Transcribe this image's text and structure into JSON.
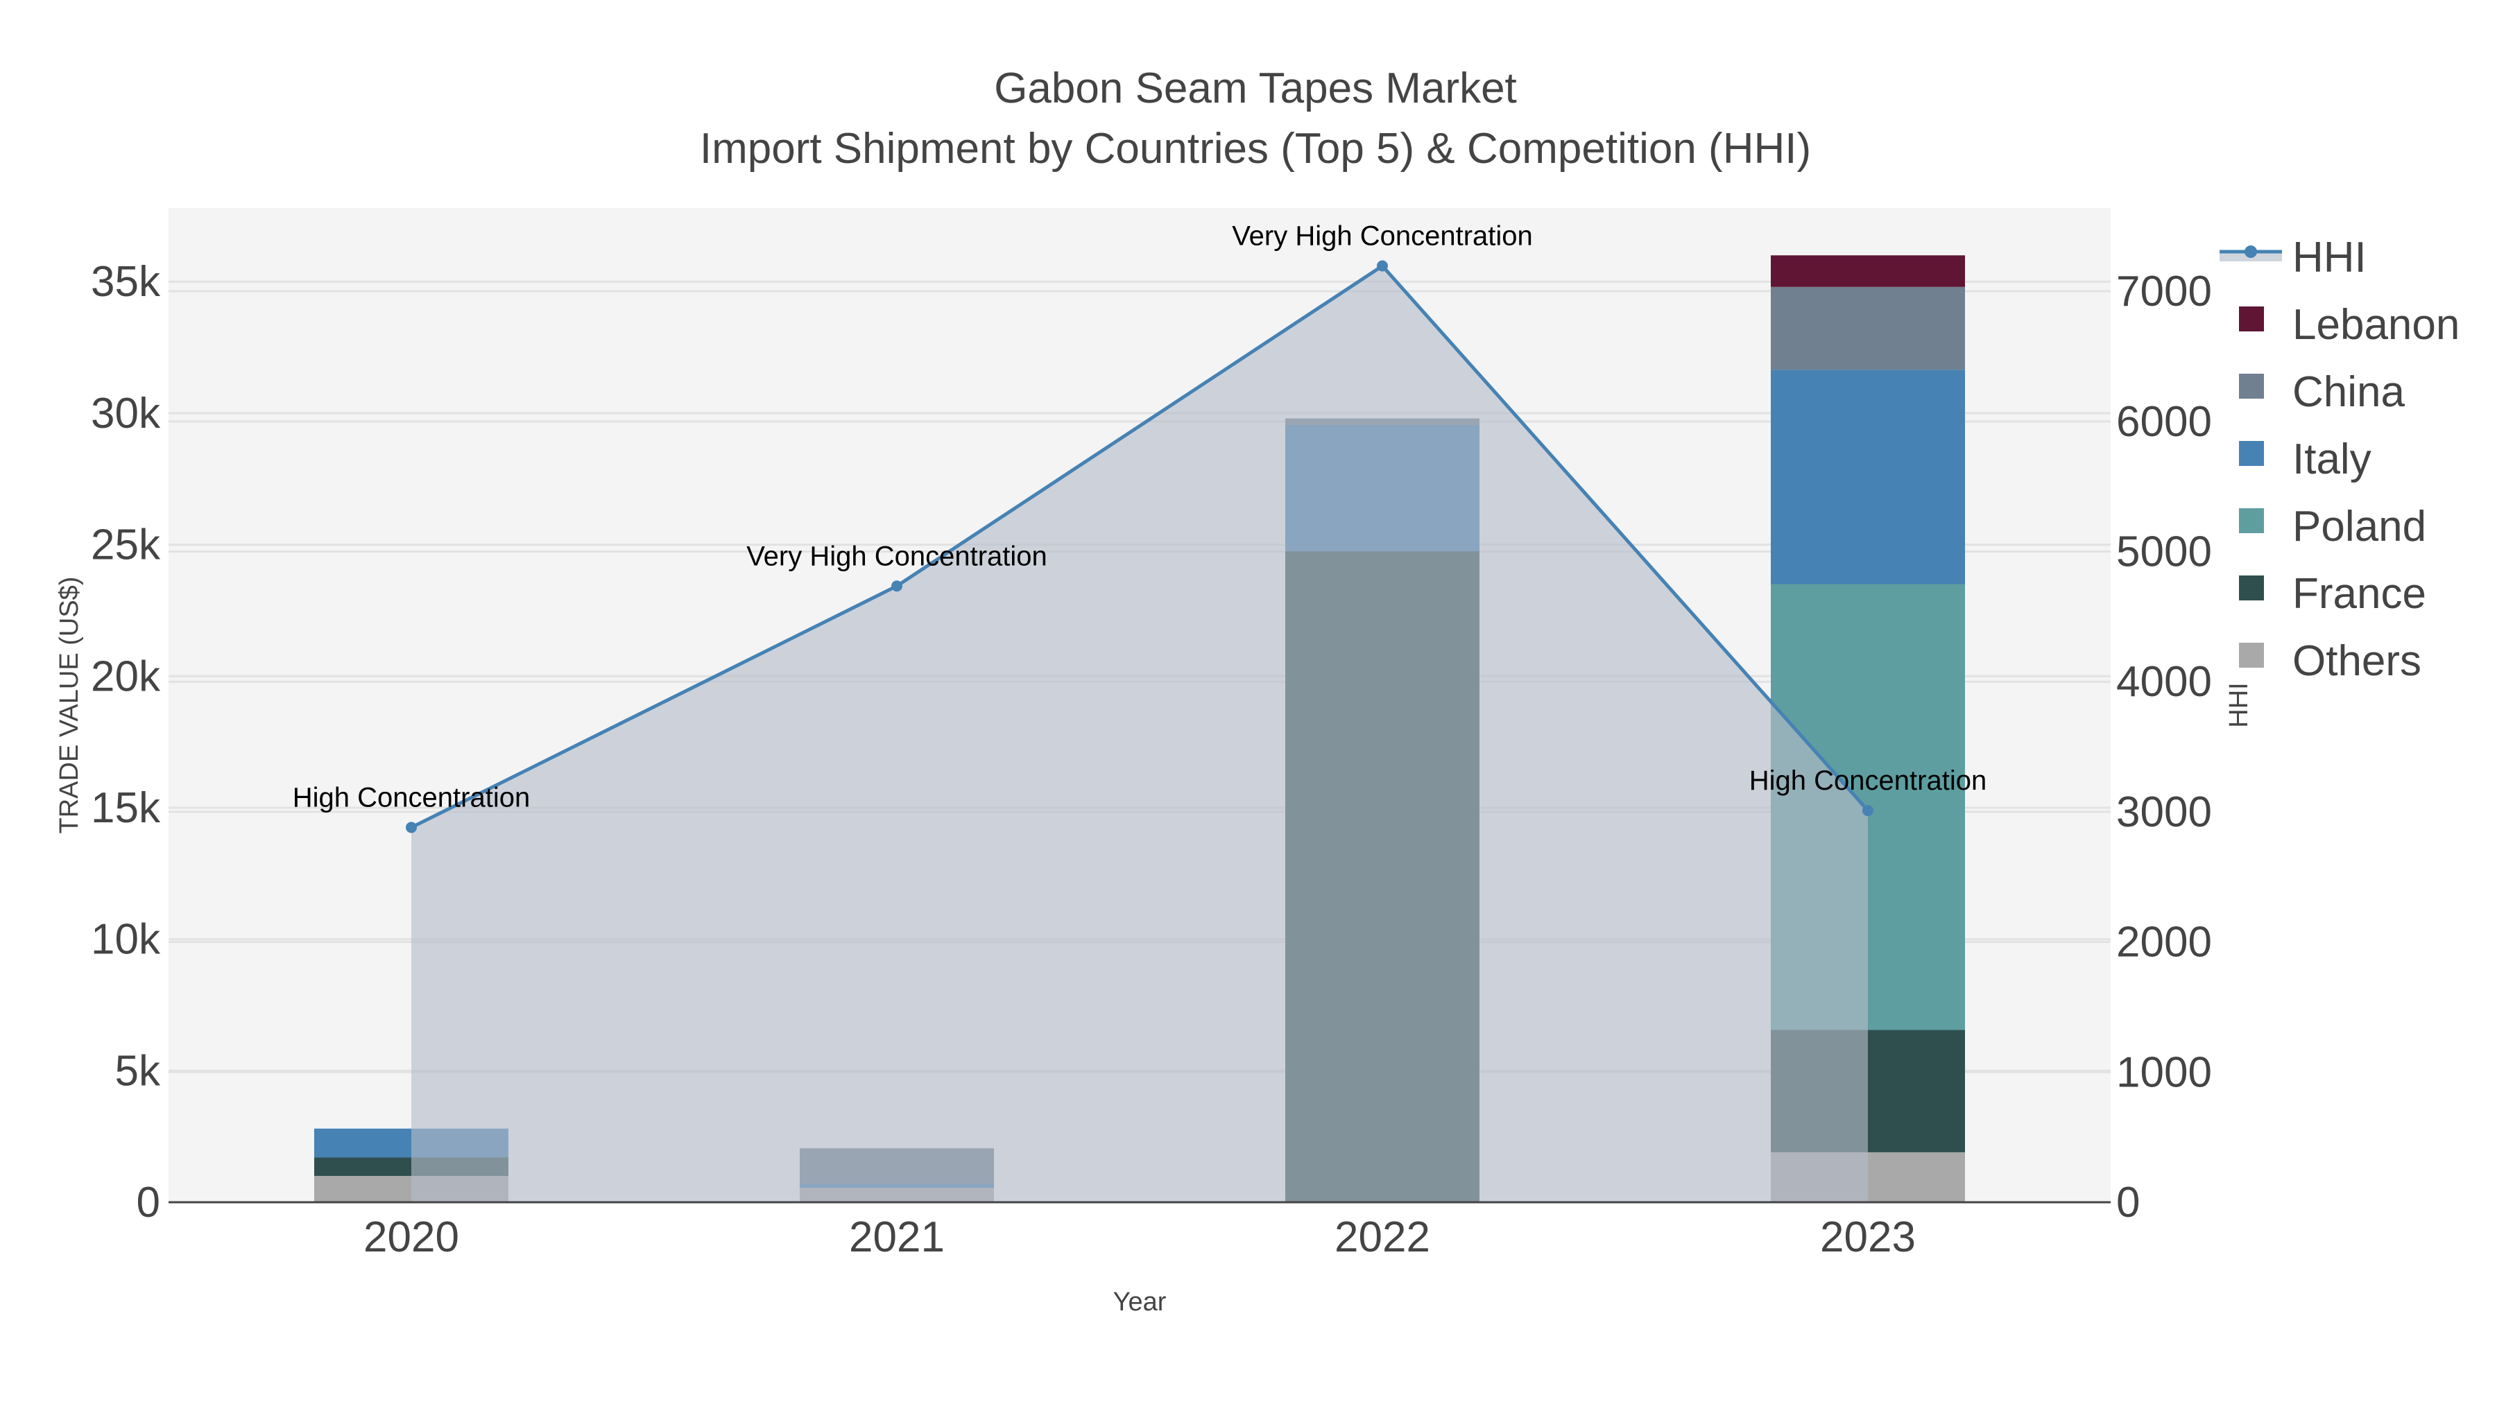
{
  "title": {
    "line1": "Gabon Seam Tapes Market",
    "line2": "Import Shipment by Countries (Top 5) & Competition (HHI)"
  },
  "colors": {
    "plot_bg": "#f4f4f4",
    "grid": "#e2e2e2",
    "hhi_line": "#4682b4",
    "hhi_fill": "rgba(176,186,200,0.6)",
    "Lebanon": "#601535",
    "China": "#708090",
    "Italy": "#4682b4",
    "Poland": "#5f9ea0",
    "France": "#2f4f4f",
    "Others": "#a9a9a9"
  },
  "axes": {
    "x_title": "Year",
    "y_left_title": "TRADE VALUE (US$)",
    "y_right_title": "HHI",
    "y_left_ticks": [
      "0",
      "5k",
      "10k",
      "15k",
      "20k",
      "25k",
      "30k",
      "35k"
    ],
    "y_right_ticks": [
      "0",
      "1000",
      "2000",
      "3000",
      "4000",
      "5000",
      "6000",
      "7000"
    ]
  },
  "legend": {
    "items": [
      {
        "label": "HHI",
        "kind": "line"
      },
      {
        "label": "Lebanon",
        "kind": "bar"
      },
      {
        "label": "China",
        "kind": "bar"
      },
      {
        "label": "Italy",
        "kind": "bar"
      },
      {
        "label": "Poland",
        "kind": "bar"
      },
      {
        "label": "France",
        "kind": "bar"
      },
      {
        "label": "Others",
        "kind": "bar"
      }
    ]
  },
  "chart_data": {
    "type": "bar",
    "stacked": true,
    "title": "Gabon Seam Tapes Market — Import Shipment by Countries (Top 5) & Competition (HHI)",
    "xlabel": "Year",
    "ylabel": "TRADE VALUE (US$)",
    "y2label": "HHI",
    "categories": [
      "2020",
      "2021",
      "2022",
      "2023"
    ],
    "ylim": [
      0,
      37800
    ],
    "y2lim": [
      0,
      7640
    ],
    "grid": true,
    "legend_position": "right",
    "series": [
      {
        "name": "Others",
        "type": "bar",
        "values": [
          1000,
          550,
          0,
          1900
        ]
      },
      {
        "name": "France",
        "type": "bar",
        "values": [
          700,
          0,
          24750,
          4650
        ]
      },
      {
        "name": "Poland",
        "type": "bar",
        "values": [
          0,
          0,
          0,
          16950
        ]
      },
      {
        "name": "Italy",
        "type": "bar",
        "values": [
          1100,
          150,
          4800,
          8150
        ]
      },
      {
        "name": "China",
        "type": "bar",
        "values": [
          0,
          1350,
          250,
          3150
        ]
      },
      {
        "name": "Lebanon",
        "type": "bar",
        "values": [
          0,
          0,
          0,
          1200
        ]
      },
      {
        "name": "HHI",
        "type": "line+area",
        "axis": "right",
        "values": [
          2880,
          4735,
          7195,
          3010
        ]
      }
    ],
    "annotations": [
      {
        "year": "2020",
        "text": "High Concentration"
      },
      {
        "year": "2021",
        "text": "Very High Concentration"
      },
      {
        "year": "2022",
        "text": "Very High Concentration"
      },
      {
        "year": "2023",
        "text": "High Concentration"
      }
    ]
  }
}
